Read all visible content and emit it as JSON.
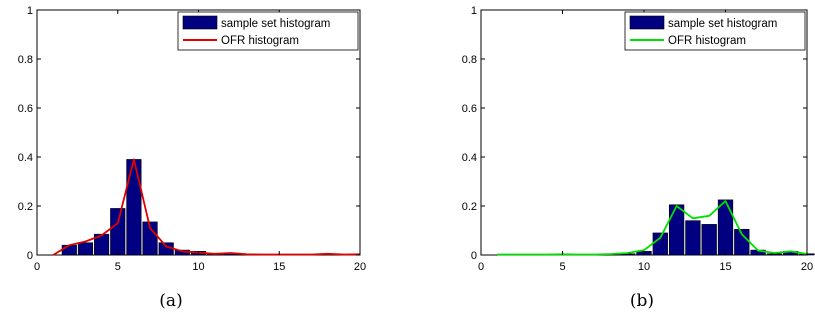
{
  "chart_data": [
    {
      "type": "bar",
      "panel_caption": "(a)",
      "xlim": [
        0,
        20
      ],
      "ylim": [
        0,
        1
      ],
      "xticks": [
        0,
        5,
        10,
        15,
        20
      ],
      "yticks": [
        0,
        0.2,
        0.4,
        0.6,
        0.8,
        1
      ],
      "ytick_labels": [
        "0",
        "0.2",
        "0.4",
        "0.6",
        "0.8",
        "1"
      ],
      "grid": false,
      "legend_position": "top-right",
      "series": [
        {
          "name": "sample set histogram",
          "kind": "bar",
          "color": "#000080",
          "x": [
            1,
            2,
            3,
            4,
            5,
            6,
            7,
            8,
            9,
            10,
            11,
            12,
            13,
            14,
            15,
            16,
            17,
            18,
            19,
            20
          ],
          "values": [
            0.0,
            0.04,
            0.05,
            0.085,
            0.19,
            0.39,
            0.135,
            0.05,
            0.02,
            0.015,
            0.005,
            0.005,
            0.0,
            0.0,
            0.0,
            0.0,
            0.0,
            0.0,
            0.0,
            0.0
          ]
        },
        {
          "name": "OFR histogram",
          "kind": "line",
          "color": "#e00000",
          "x": [
            1,
            2,
            3,
            4,
            5,
            6,
            7,
            8,
            9,
            10,
            11,
            12,
            13,
            14,
            15,
            16,
            17,
            18,
            19,
            20
          ],
          "values": [
            0.0,
            0.04,
            0.055,
            0.08,
            0.13,
            0.39,
            0.11,
            0.035,
            0.015,
            0.01,
            0.005,
            0.008,
            0.003,
            0.002,
            0.002,
            0.002,
            0.002,
            0.005,
            0.002,
            0.003
          ]
        }
      ]
    },
    {
      "type": "bar",
      "panel_caption": "(b)",
      "xlim": [
        0,
        20
      ],
      "ylim": [
        0,
        1
      ],
      "xticks": [
        0,
        5,
        10,
        15,
        20
      ],
      "yticks": [
        0,
        0.2,
        0.4,
        0.6,
        0.8,
        1
      ],
      "ytick_labels": [
        "0",
        "0.2",
        "0.4",
        "0.6",
        "0.8",
        "1"
      ],
      "grid": false,
      "legend_position": "top-right",
      "series": [
        {
          "name": "sample set histogram",
          "kind": "bar",
          "color": "#000080",
          "x": [
            1,
            2,
            3,
            4,
            5,
            6,
            7,
            8,
            9,
            10,
            11,
            12,
            13,
            14,
            15,
            16,
            17,
            18,
            19,
            20
          ],
          "values": [
            0.0,
            0.0,
            0.0,
            0.0,
            0.0,
            0.0,
            0.0,
            0.0,
            0.005,
            0.015,
            0.09,
            0.205,
            0.14,
            0.125,
            0.225,
            0.105,
            0.02,
            0.005,
            0.015,
            0.005
          ]
        },
        {
          "name": "OFR histogram",
          "kind": "line",
          "color": "#00e000",
          "x": [
            1,
            2,
            3,
            4,
            5,
            6,
            7,
            8,
            9,
            10,
            11,
            12,
            13,
            14,
            15,
            16,
            17,
            18,
            19,
            20
          ],
          "values": [
            0.002,
            0.002,
            0.002,
            0.002,
            0.003,
            0.002,
            0.002,
            0.004,
            0.008,
            0.02,
            0.07,
            0.2,
            0.15,
            0.16,
            0.22,
            0.085,
            0.018,
            0.008,
            0.015,
            0.004
          ]
        }
      ]
    }
  ]
}
